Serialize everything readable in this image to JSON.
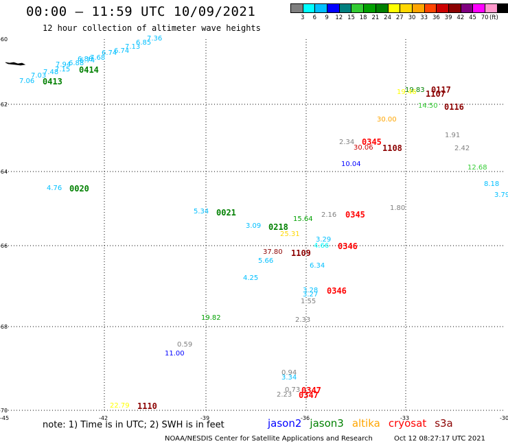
{
  "title": "00:00 – 11:59 UTC 10/09/2021",
  "subtitle": "12 hour collection of altimeter wave heights",
  "legend": {
    "colors": [
      "#7f7f7f",
      "#00ffff",
      "#00bfff",
      "#0000ff",
      "#007f7f",
      "#33cc33",
      "#00a000",
      "#008000",
      "#ffff00",
      "#ffd700",
      "#ffa500",
      "#ff4500",
      "#cc0000",
      "#8b0000",
      "#800080",
      "#ff00ff",
      "#ff99cc",
      "#000000"
    ],
    "ticks": [
      "3",
      "6",
      "9",
      "12",
      "15",
      "18",
      "21",
      "24",
      "27",
      "30",
      "33",
      "36",
      "39",
      "42",
      "45",
      "70"
    ],
    "unit": "(ft)"
  },
  "axes": {
    "lat_labels": [
      "-60",
      "-62",
      "-64",
      "-66",
      "-68",
      "-70"
    ],
    "lon_labels": [
      "-45",
      "-42",
      "-39",
      "-36",
      "-33",
      "-30"
    ]
  },
  "obs": [
    {
      "t": "7.36",
      "c": "#00bfff"
    },
    {
      "t": "6.85",
      "c": "#00bfff"
    },
    {
      "t": "7.13",
      "c": "#00bfff"
    },
    {
      "t": "6.74",
      "c": "#00bfff"
    },
    {
      "t": "6.74",
      "c": "#00bfff"
    },
    {
      "t": "7.68",
      "c": "#00bfff"
    },
    {
      "t": "6.74",
      "c": "#00bfff"
    },
    {
      "t": "6.88",
      "c": "#00bfff"
    },
    {
      "t": "6.88",
      "c": "#00bfff"
    },
    {
      "t": "7.94",
      "c": "#00bfff"
    },
    {
      "t": "7.15",
      "c": "#00bfff"
    },
    {
      "t": "7.48",
      "c": "#00bfff"
    },
    {
      "t": "7.03",
      "c": "#00bfff"
    },
    {
      "t": "7.06",
      "c": "#00bfff"
    },
    {
      "t": "19.83",
      "c": "#008000"
    },
    {
      "t": "19.46",
      "c": "#ffff00"
    },
    {
      "t": "14.50",
      "c": "#33cc33"
    },
    {
      "t": "30.00",
      "c": "#ffa500"
    },
    {
      "t": "1.91",
      "c": "#7f7f7f"
    },
    {
      "t": "2.34",
      "c": "#7f7f7f"
    },
    {
      "t": "30.06",
      "c": "#cc0000"
    },
    {
      "t": "2.42",
      "c": "#7f7f7f"
    },
    {
      "t": "10.04",
      "c": "#0000ff"
    },
    {
      "t": "12.68",
      "c": "#33cc33"
    },
    {
      "t": "8.18",
      "c": "#00bfff"
    },
    {
      "t": "3.79",
      "c": "#00bfff"
    },
    {
      "t": "4.76",
      "c": "#00bfff"
    },
    {
      "t": "1.80",
      "c": "#7f7f7f"
    },
    {
      "t": "5.34",
      "c": "#00bfff"
    },
    {
      "t": "2.16",
      "c": "#7f7f7f"
    },
    {
      "t": "3.09",
      "c": "#00bfff"
    },
    {
      "t": "15.64",
      "c": "#00a000"
    },
    {
      "t": "25.31",
      "c": "#ffd700"
    },
    {
      "t": "3.29",
      "c": "#00bfff"
    },
    {
      "t": "4.66",
      "c": "#00ffff"
    },
    {
      "t": "37.80",
      "c": "#8b0000"
    },
    {
      "t": "5.66",
      "c": "#00bfff"
    },
    {
      "t": "6.34",
      "c": "#00bfff"
    },
    {
      "t": "4.25",
      "c": "#00bfff"
    },
    {
      "t": "3.28",
      "c": "#00bfff"
    },
    {
      "t": "3.27",
      "c": "#00bfff"
    },
    {
      "t": "1.55",
      "c": "#7f7f7f"
    },
    {
      "t": "19.82",
      "c": "#00a000"
    },
    {
      "t": "2.33",
      "c": "#7f7f7f"
    },
    {
      "t": "0.59",
      "c": "#7f7f7f"
    },
    {
      "t": "11.00",
      "c": "#0000ff"
    },
    {
      "t": "0.94",
      "c": "#7f7f7f"
    },
    {
      "t": "3.34",
      "c": "#00bfff"
    },
    {
      "t": "0.73",
      "c": "#7f7f7f"
    },
    {
      "t": "2.23",
      "c": "#7f7f7f"
    },
    {
      "t": "22.79",
      "c": "#ffff00"
    }
  ],
  "passes": [
    {
      "t": "0414",
      "c": "#008000"
    },
    {
      "t": "0413",
      "c": "#008000"
    },
    {
      "t": "0117",
      "c": "#8b0000"
    },
    {
      "t": "1107",
      "c": "#8b0000"
    },
    {
      "t": "0116",
      "c": "#8b0000"
    },
    {
      "t": "0345",
      "c": "#ff0000"
    },
    {
      "t": "1108",
      "c": "#8b0000"
    },
    {
      "t": "0020",
      "c": "#008000"
    },
    {
      "t": "0021",
      "c": "#008000"
    },
    {
      "t": "0345",
      "c": "#ff0000"
    },
    {
      "t": "0218",
      "c": "#008000"
    },
    {
      "t": "0346",
      "c": "#ff0000"
    },
    {
      "t": "1109",
      "c": "#8b0000"
    },
    {
      "t": "0346",
      "c": "#ff0000"
    },
    {
      "t": "0347",
      "c": "#ff0000"
    },
    {
      "t": "0347",
      "c": "#ff0000"
    },
    {
      "t": "1110",
      "c": "#8b0000"
    }
  ],
  "note": "note: 1) Time is in UTC; 2) SWH is in feet",
  "satellites": [
    {
      "name": "jason2",
      "c": "#0000ff"
    },
    {
      "name": "jason3",
      "c": "#008000"
    },
    {
      "name": "altika",
      "c": "#ffa500"
    },
    {
      "name": "cryosat",
      "c": "#ff0000"
    },
    {
      "name": "s3a",
      "c": "#8b0000"
    }
  ],
  "footer": {
    "credit": "NOAA/NESDIS Center for Satellite Applications and Research",
    "timestamp": "Oct 12 08:27:17 UTC 2021"
  }
}
